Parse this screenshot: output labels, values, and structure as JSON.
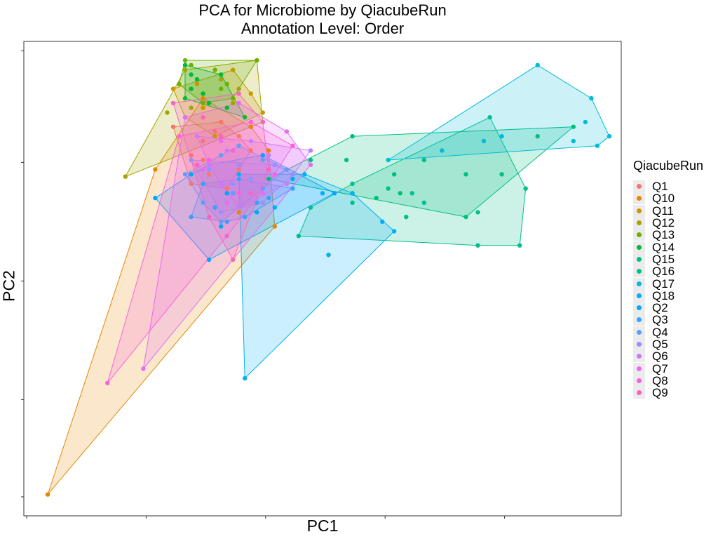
{
  "chart_data": {
    "type": "scatter",
    "title": "PCA for Microbiome by QiacubeRun",
    "subtitle": "Annotation Level: Order",
    "xlabel": "PC1",
    "ylabel": "PC2",
    "xlim": [
      0,
      100
    ],
    "ylim": [
      0,
      100
    ],
    "grid": false,
    "legend_position": "right",
    "legend_title": "QiacubeRun",
    "hulls": true,
    "series": [
      {
        "name": "Q1",
        "color": "#F8766D",
        "points": [
          [
            25,
            82
          ],
          [
            28,
            76
          ],
          [
            30,
            79
          ],
          [
            33,
            83
          ],
          [
            36,
            80
          ],
          [
            38,
            77
          ],
          [
            31,
            72
          ],
          [
            28,
            70
          ],
          [
            34,
            69
          ],
          [
            36,
            73
          ],
          [
            30,
            75
          ],
          [
            32,
            81
          ]
        ]
      },
      {
        "name": "Q10",
        "color": "#E58700",
        "points": [
          [
            4,
            4.5
          ],
          [
            22,
            73
          ],
          [
            30,
            88
          ],
          [
            33,
            80
          ],
          [
            38,
            82
          ],
          [
            41,
            77
          ],
          [
            42,
            61
          ],
          [
            36,
            64
          ]
        ]
      },
      {
        "name": "Q11",
        "color": "#C99800",
        "points": [
          [
            25,
            90
          ],
          [
            35,
            94
          ],
          [
            38,
            89
          ],
          [
            40,
            85
          ],
          [
            32,
            80
          ],
          [
            27,
            84
          ],
          [
            30,
            86
          ],
          [
            34,
            86
          ],
          [
            29,
            91
          ]
        ]
      },
      {
        "name": "Q12",
        "color": "#A3A500",
        "points": [
          [
            17,
            71.5
          ],
          [
            24,
            85
          ],
          [
            27,
            94
          ],
          [
            39,
            96
          ],
          [
            40,
            83
          ],
          [
            30,
            89
          ],
          [
            33,
            92
          ],
          [
            35,
            87
          ],
          [
            28,
            86
          ],
          [
            36,
            90
          ]
        ]
      },
      {
        "name": "Q13",
        "color": "#6BB100",
        "points": [
          [
            27,
            96
          ],
          [
            28,
            95
          ],
          [
            39,
            96
          ],
          [
            32,
            94
          ],
          [
            26,
            91
          ],
          [
            33,
            90
          ],
          [
            35,
            88
          ],
          [
            30,
            87
          ],
          [
            29,
            92
          ],
          [
            34,
            91
          ]
        ]
      },
      {
        "name": "Q14",
        "color": "#00BA38",
        "points": [
          [
            27,
            95
          ],
          [
            28,
            90
          ],
          [
            27,
            88
          ],
          [
            30,
            89
          ],
          [
            33,
            93
          ],
          [
            37,
            84
          ],
          [
            34,
            86
          ],
          [
            31,
            87
          ],
          [
            29,
            92
          ],
          [
            28,
            93
          ]
        ]
      },
      {
        "name": "Q15",
        "color": "#00BF7D",
        "points": [
          [
            41,
            71
          ],
          [
            48,
            75
          ],
          [
            55,
            80
          ],
          [
            54,
            75
          ],
          [
            59,
            67
          ],
          [
            74,
            72
          ],
          [
            67,
            75
          ],
          [
            80,
            72
          ],
          [
            86,
            80
          ],
          [
            92,
            82
          ],
          [
            74,
            63
          ],
          [
            62,
            72
          ],
          [
            63,
            68
          ]
        ]
      },
      {
        "name": "Q16",
        "color": "#00C08B",
        "points": [
          [
            48,
            65
          ],
          [
            55,
            66
          ],
          [
            46,
            59
          ],
          [
            55,
            70
          ],
          [
            61,
            69
          ],
          [
            64,
            63
          ],
          [
            76,
            64
          ],
          [
            84,
            69
          ],
          [
            83,
            57
          ],
          [
            76,
            57
          ],
          [
            65,
            68
          ],
          [
            67,
            66
          ],
          [
            78,
            84
          ]
        ]
      },
      {
        "name": "Q17",
        "color": "#00BCD8",
        "points": [
          [
            86,
            95
          ],
          [
            95,
            88
          ],
          [
            94,
            83
          ],
          [
            98,
            80
          ],
          [
            96,
            78
          ],
          [
            77,
            79
          ],
          [
            70,
            77
          ],
          [
            61,
            75
          ],
          [
            80,
            80
          ],
          [
            92,
            79
          ]
        ]
      },
      {
        "name": "Q18",
        "color": "#00B0F6",
        "points": [
          [
            36,
            72
          ],
          [
            44,
            70
          ],
          [
            47,
            72
          ],
          [
            55,
            68
          ],
          [
            60,
            62
          ],
          [
            62,
            60
          ],
          [
            51,
            55
          ],
          [
            37,
            29
          ],
          [
            42,
            65
          ],
          [
            50,
            68
          ]
        ]
      },
      {
        "name": "Q2",
        "color": "#00A5FF",
        "points": [
          [
            22,
            67
          ],
          [
            28,
            72
          ],
          [
            31,
            74
          ],
          [
            40,
            76
          ],
          [
            45,
            71
          ],
          [
            52,
            68
          ],
          [
            39,
            64
          ],
          [
            33,
            61
          ],
          [
            31,
            54
          ],
          [
            34,
            68
          ]
        ]
      },
      {
        "name": "Q3",
        "color": "#35A2FF",
        "points": [
          [
            28,
            63
          ],
          [
            30,
            70
          ],
          [
            36,
            71
          ],
          [
            41,
            67
          ],
          [
            45,
            69
          ],
          [
            37,
            63
          ],
          [
            34,
            62
          ],
          [
            32,
            65
          ],
          [
            39,
            66
          ]
        ]
      },
      {
        "name": "Q4",
        "color": "#619CFF",
        "points": [
          [
            27,
            72
          ],
          [
            33,
            76
          ],
          [
            36,
            78
          ],
          [
            40,
            75
          ],
          [
            44,
            73
          ],
          [
            40,
            69
          ],
          [
            33,
            62
          ],
          [
            30,
            66
          ],
          [
            35,
            68
          ],
          [
            38,
            71
          ]
        ]
      },
      {
        "name": "Q5",
        "color": "#9590FF",
        "points": [
          [
            28,
            75
          ],
          [
            31,
            73
          ],
          [
            36,
            74
          ],
          [
            42,
            74
          ],
          [
            45,
            72
          ],
          [
            40,
            66
          ],
          [
            33,
            64
          ],
          [
            35,
            70
          ],
          [
            38,
            71
          ]
        ]
      },
      {
        "name": "Q6",
        "color": "#C77CFF",
        "points": [
          [
            29,
            80
          ],
          [
            34,
            77
          ],
          [
            38,
            79
          ],
          [
            41,
            76
          ],
          [
            48,
            77
          ],
          [
            44,
            70
          ],
          [
            36,
            65
          ],
          [
            33,
            70
          ],
          [
            31,
            74
          ]
        ]
      },
      {
        "name": "Q7",
        "color": "#E76BF3",
        "points": [
          [
            20,
            31
          ],
          [
            27,
            84
          ],
          [
            36,
            87
          ],
          [
            44,
            81
          ],
          [
            48,
            74
          ],
          [
            40,
            68
          ],
          [
            34,
            66
          ],
          [
            30,
            73
          ],
          [
            33,
            79
          ]
        ]
      },
      {
        "name": "Q8",
        "color": "#FA62DB",
        "points": [
          [
            14,
            28
          ],
          [
            26,
            80
          ],
          [
            38,
            83
          ],
          [
            45,
            78
          ],
          [
            42,
            72
          ],
          [
            36,
            68
          ],
          [
            34,
            59
          ],
          [
            31,
            75
          ],
          [
            35,
            77
          ]
        ]
      },
      {
        "name": "Q9",
        "color": "#FF62BC",
        "points": [
          [
            25,
            87
          ],
          [
            30,
            84
          ],
          [
            36,
            89
          ],
          [
            40,
            83
          ],
          [
            41,
            73
          ],
          [
            38,
            68
          ],
          [
            35,
            54
          ],
          [
            31,
            63
          ],
          [
            29,
            74
          ],
          [
            33,
            80
          ]
        ]
      }
    ]
  }
}
